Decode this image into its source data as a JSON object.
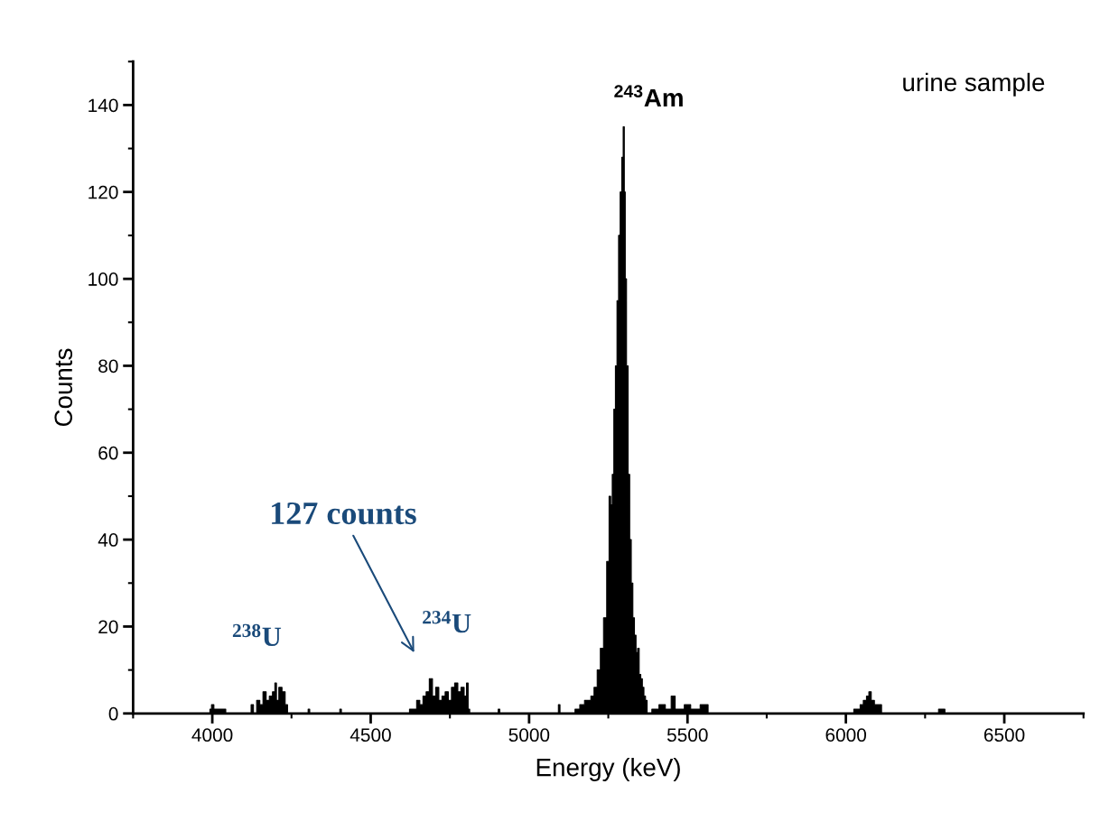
{
  "chart_data": {
    "type": "area",
    "xlabel": "Energy (keV)",
    "ylabel": "Counts",
    "color": "#000000",
    "xlim": [
      3750,
      6750
    ],
    "xticks": [
      4000,
      4500,
      5000,
      5500,
      6000,
      6500
    ],
    "ylim": [
      0,
      150
    ],
    "yticks": [
      0,
      20,
      40,
      60,
      80,
      100,
      120,
      140
    ],
    "grid": false,
    "legend": false,
    "x": [
      3750,
      3990,
      3995,
      4000,
      4010,
      4040,
      4045,
      4120,
      4125,
      4135,
      4145,
      4155,
      4165,
      4175,
      4185,
      4195,
      4200,
      4205,
      4215,
      4225,
      4235,
      4240,
      4300,
      4305,
      4310,
      4400,
      4405,
      4410,
      4620,
      4625,
      4640,
      4650,
      4660,
      4670,
      4680,
      4690,
      4700,
      4710,
      4720,
      4730,
      4740,
      4750,
      4760,
      4770,
      4780,
      4790,
      4800,
      4805,
      4810,
      4815,
      4900,
      4905,
      4910,
      5090,
      5095,
      5100,
      5140,
      5150,
      5170,
      5180,
      5190,
      5200,
      5210,
      5220,
      5230,
      5240,
      5250,
      5255,
      5260,
      5265,
      5270,
      5275,
      5280,
      5285,
      5290,
      5295,
      5299,
      5302,
      5305,
      5310,
      5315,
      5320,
      5325,
      5330,
      5335,
      5340,
      5345,
      5350,
      5355,
      5360,
      5365,
      5370,
      5375,
      5400,
      5420,
      5440,
      5457,
      5465,
      5480,
      5500,
      5520,
      5560,
      5570,
      6020,
      6030,
      6040,
      6050,
      6060,
      6070,
      6075,
      6085,
      6095,
      6110,
      6115,
      6290,
      6295,
      6310,
      6315,
      6750
    ],
    "values": [
      0,
      0,
      1,
      2,
      1,
      1,
      0,
      0,
      2,
      0,
      3,
      2,
      5,
      3,
      4,
      5,
      7,
      3,
      6,
      5,
      2,
      0,
      0,
      1,
      0,
      0,
      1,
      0,
      0,
      1,
      1,
      3,
      2,
      4,
      5,
      8,
      4,
      6,
      3,
      4,
      5,
      3,
      6,
      7,
      5,
      6,
      4,
      7,
      1,
      0,
      0,
      1,
      0,
      0,
      2,
      0,
      0,
      1,
      2,
      3,
      3,
      4,
      6,
      10,
      15,
      22,
      35,
      50,
      48,
      55,
      70,
      80,
      95,
      110,
      120,
      128,
      135,
      120,
      100,
      80,
      55,
      40,
      30,
      22,
      18,
      14,
      15,
      9,
      8,
      6,
      4,
      3,
      0,
      1,
      2,
      1,
      4,
      1,
      1,
      2,
      1,
      2,
      0,
      0,
      1,
      1,
      2,
      3,
      4,
      5,
      3,
      2,
      2,
      0,
      0,
      1,
      1,
      0,
      0
    ],
    "annotations": [
      {
        "text": "$^{243}$Am",
        "x": 5299,
        "y": 135
      },
      {
        "text": "$^{238}$U",
        "x": 4200,
        "y": 7
      },
      "$^{234}$U",
      "127 counts",
      "urine sample"
    ]
  }
}
